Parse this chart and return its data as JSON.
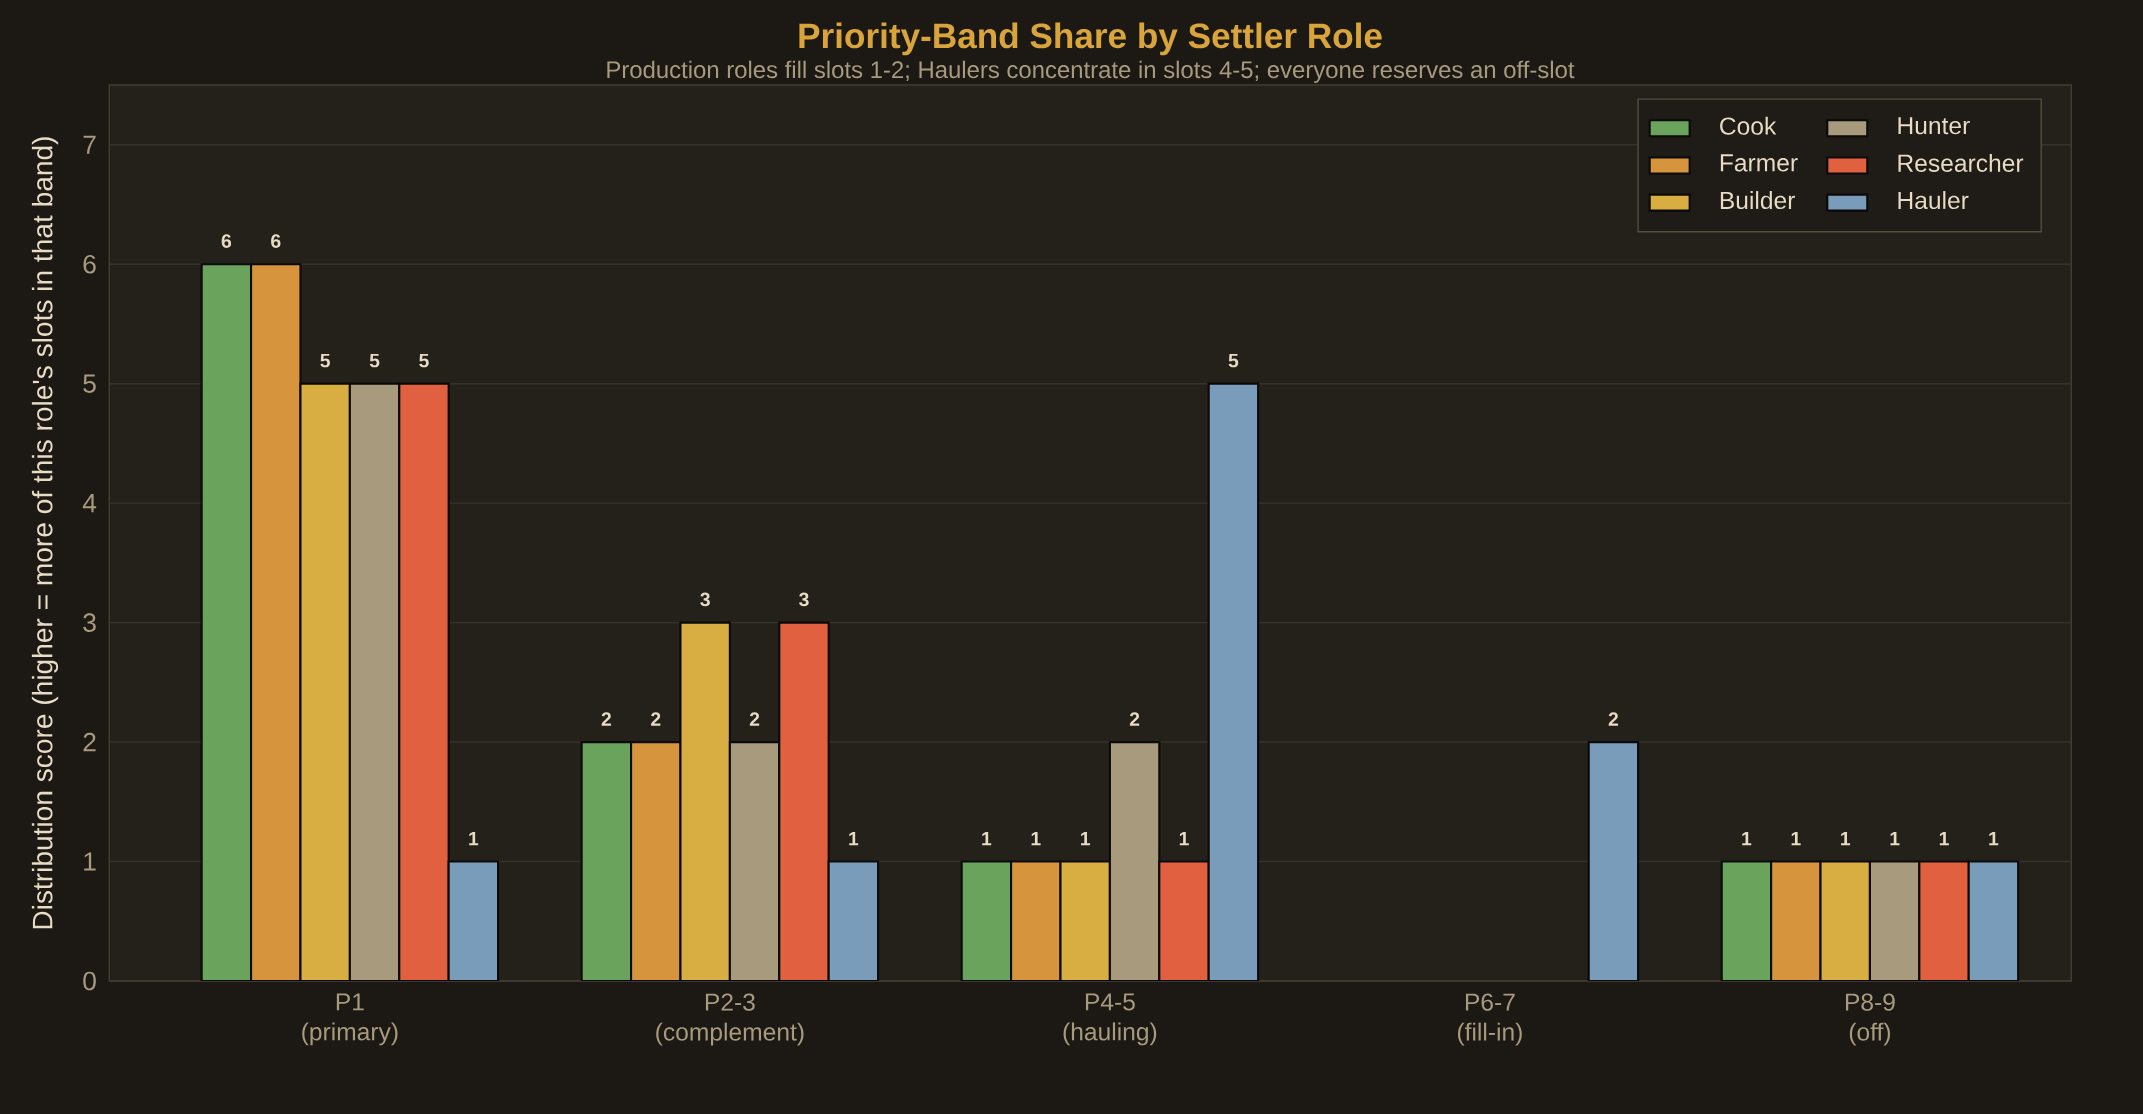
{
  "chart_data": {
    "type": "bar",
    "title": "Priority-Band Share by Settler Role",
    "subtitle": "Production roles fill slots 1-2; Haulers concentrate in slots 4-5; everyone reserves an off-slot",
    "ylabel": "Distribution score (higher = more of this role's slots in that band)",
    "categories": [
      "P1\n(primary)",
      "P2-3\n(complement)",
      "P4-5\n(hauling)",
      "P6-7\n(fill-in)",
      "P8-9\n(off)"
    ],
    "series": [
      {
        "name": "Cook",
        "color": "#6aa35c",
        "values": [
          6,
          2,
          1,
          null,
          1
        ]
      },
      {
        "name": "Farmer",
        "color": "#d6953c",
        "values": [
          6,
          2,
          1,
          null,
          1
        ]
      },
      {
        "name": "Builder",
        "color": "#d8ae42",
        "values": [
          5,
          3,
          1,
          null,
          1
        ]
      },
      {
        "name": "Hunter",
        "color": "#a89a7c",
        "values": [
          5,
          2,
          2,
          null,
          1
        ]
      },
      {
        "name": "Researcher",
        "color": "#e06040",
        "values": [
          5,
          3,
          1,
          null,
          1
        ]
      },
      {
        "name": "Hauler",
        "color": "#7a9cbb",
        "values": [
          1,
          1,
          5,
          2,
          1
        ]
      }
    ],
    "ylim": [
      0,
      7.5
    ],
    "yticks": [
      0,
      1,
      2,
      3,
      4,
      5,
      6,
      7
    ],
    "grid": "y",
    "legend": "top right",
    "data_labels": true
  }
}
